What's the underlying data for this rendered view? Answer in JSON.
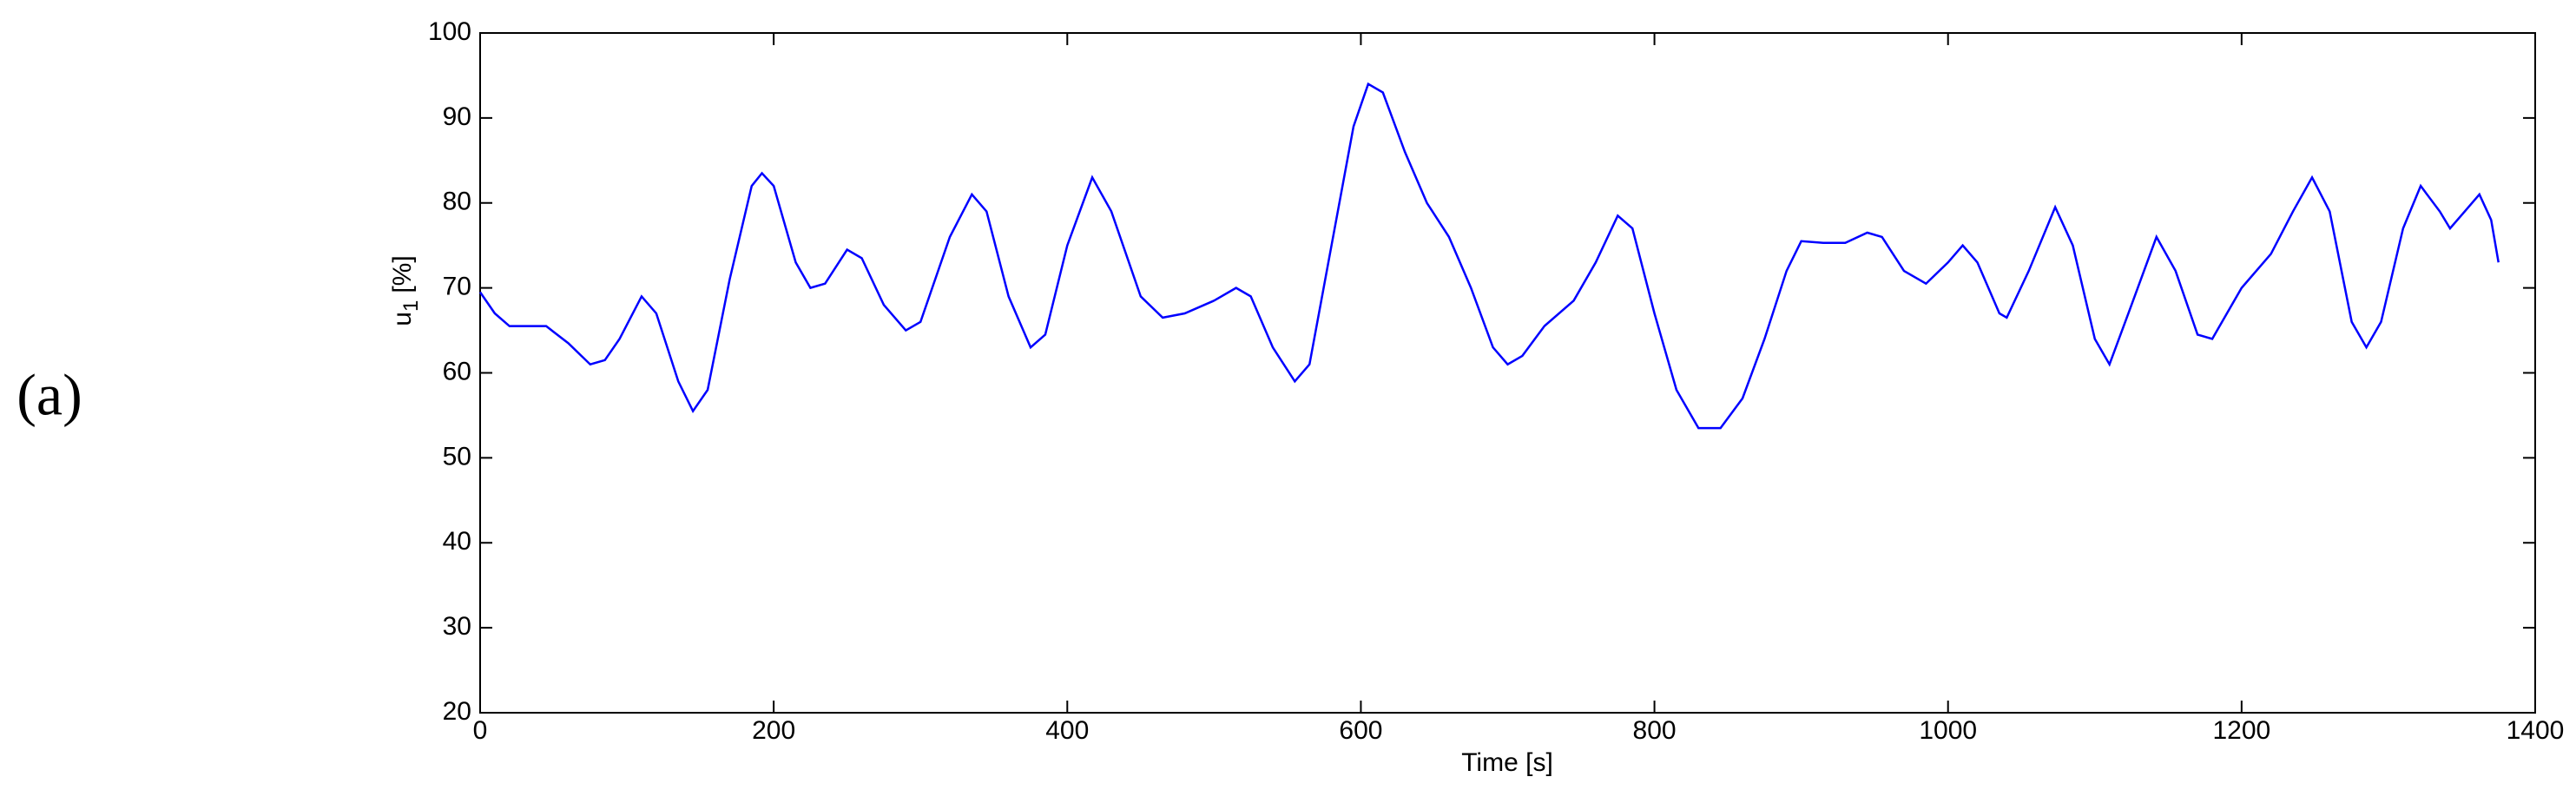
{
  "panel_label": "(a)",
  "chart_data": {
    "type": "line",
    "xlabel": "Time [s]",
    "ylabel": {
      "base": "u",
      "subscript": "1",
      "unit": "[%]"
    },
    "xlim": [
      0,
      1400
    ],
    "xticks": [
      0,
      200,
      400,
      600,
      800,
      1000,
      1200,
      1400
    ],
    "ylim": [
      20,
      100
    ],
    "yticks": [
      20,
      30,
      40,
      50,
      60,
      70,
      80,
      90,
      100
    ],
    "grid": false,
    "series": [
      {
        "color": "#0000ff",
        "x": [
          0,
          10,
          20,
          45,
          60,
          75,
          85,
          95,
          110,
          120,
          135,
          145,
          155,
          170,
          185,
          192,
          200,
          215,
          225,
          235,
          250,
          260,
          275,
          290,
          300,
          320,
          335,
          345,
          360,
          375,
          385,
          400,
          417,
          430,
          450,
          465,
          480,
          500,
          515,
          525,
          540,
          555,
          565,
          580,
          595,
          605,
          615,
          630,
          645,
          660,
          675,
          690,
          700,
          710,
          725,
          745,
          760,
          775,
          785,
          800,
          815,
          830,
          845,
          860,
          875,
          890,
          900,
          915,
          930,
          945,
          955,
          970,
          985,
          1000,
          1010,
          1020,
          1035,
          1040,
          1055,
          1073,
          1085,
          1100,
          1110,
          1125,
          1142,
          1155,
          1170,
          1180,
          1200,
          1220,
          1235,
          1248,
          1260,
          1275,
          1285,
          1295,
          1310,
          1322,
          1335,
          1342,
          1352,
          1362,
          1370,
          1375
        ],
        "values": [
          69.5,
          67,
          65.5,
          65.5,
          63.5,
          61,
          61.5,
          64,
          69,
          67,
          59,
          55.5,
          58,
          71,
          82,
          83.5,
          82,
          73,
          70,
          70.5,
          74.5,
          73.5,
          68,
          65,
          66,
          76,
          81,
          79,
          69,
          63,
          64.5,
          75,
          83,
          79,
          69,
          66.5,
          67,
          68.5,
          70,
          69,
          63,
          59,
          61,
          75,
          89,
          94,
          93,
          86,
          80,
          76,
          70,
          63,
          61,
          62,
          65.5,
          68.5,
          73,
          78.5,
          77,
          67,
          58,
          53.5,
          53.5,
          57,
          64,
          72,
          75.5,
          75.3,
          75.3,
          76.5,
          76,
          72,
          70.5,
          73,
          75,
          73,
          67,
          66.5,
          72,
          79.5,
          75,
          64,
          61,
          68,
          76,
          72,
          64.5,
          64,
          70,
          74,
          79,
          83,
          79,
          66,
          63,
          66,
          77,
          82,
          79,
          77,
          79,
          81,
          78,
          73
        ]
      }
    ]
  }
}
